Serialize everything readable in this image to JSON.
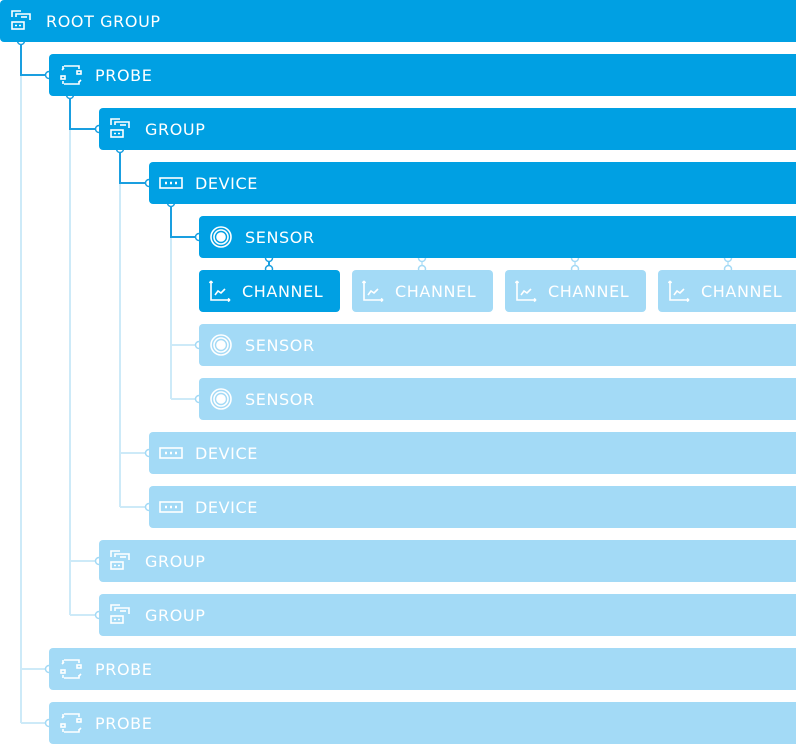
{
  "colors": {
    "active": "#00a0e3",
    "inactive": "#a3daf6"
  },
  "nodes": [
    {
      "label": "ROOT GROUP",
      "icon": "group-icon",
      "state": "active"
    },
    {
      "label": "PROBE",
      "icon": "probe-icon",
      "state": "active"
    },
    {
      "label": "GROUP",
      "icon": "group-icon",
      "state": "active"
    },
    {
      "label": "DEVICE",
      "icon": "device-icon",
      "state": "active"
    },
    {
      "label": "SENSOR",
      "icon": "sensor-icon",
      "state": "active"
    },
    {
      "label": "SENSOR",
      "icon": "sensor-icon",
      "state": "inactive"
    },
    {
      "label": "SENSOR",
      "icon": "sensor-icon",
      "state": "inactive"
    },
    {
      "label": "DEVICE",
      "icon": "device-icon",
      "state": "inactive"
    },
    {
      "label": "DEVICE",
      "icon": "device-icon",
      "state": "inactive"
    },
    {
      "label": "GROUP",
      "icon": "group-icon",
      "state": "inactive"
    },
    {
      "label": "GROUP",
      "icon": "group-icon",
      "state": "inactive"
    },
    {
      "label": "PROBE",
      "icon": "probe-icon",
      "state": "inactive"
    },
    {
      "label": "PROBE",
      "icon": "probe-icon",
      "state": "inactive"
    }
  ],
  "channels": [
    {
      "label": "CHANNEL",
      "icon": "chart-icon",
      "state": "active"
    },
    {
      "label": "CHANNEL",
      "icon": "chart-icon",
      "state": "inactive"
    },
    {
      "label": "CHANNEL",
      "icon": "chart-icon",
      "state": "inactive"
    },
    {
      "label": "CHANNEL",
      "icon": "chart-icon",
      "state": "inactive"
    }
  ]
}
